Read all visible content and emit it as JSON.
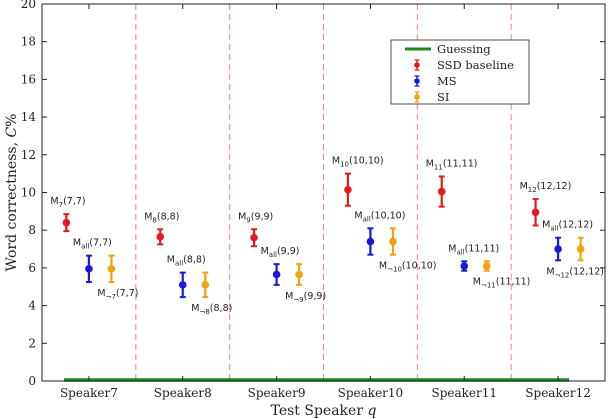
{
  "chart_data": {
    "type": "scatter",
    "ylabel_main": "Word correctness, ",
    "ylabel_var": "C",
    "ylabel_unit": "%",
    "xlabel_main": "Test Speaker ",
    "xlabel_var": "q",
    "categories": [
      "Speaker7",
      "Speaker8",
      "Speaker9",
      "Speaker10",
      "Speaker11",
      "Speaker12"
    ],
    "ylim": [
      0,
      20
    ],
    "yticks": [
      0,
      2,
      4,
      6,
      8,
      10,
      12,
      14,
      16,
      18,
      20
    ],
    "legend_position": "top-right",
    "guessing": {
      "name": "Guessing",
      "value": 0.0,
      "color": "#1a8a1a"
    },
    "series": [
      {
        "name": "SSD baseline",
        "color": "#e41a1c",
        "values": [
          8.4,
          7.65,
          7.6,
          10.15,
          10.05,
          8.95
        ],
        "err": [
          0.45,
          0.4,
          0.45,
          0.85,
          0.8,
          0.7
        ],
        "labels": [
          {
            "base": "M",
            "sub": "7",
            "args": "(7,7)"
          },
          {
            "base": "M",
            "sub": "8",
            "args": "(8,8)"
          },
          {
            "base": "M",
            "sub": "9",
            "args": "(9,9)"
          },
          {
            "base": "M",
            "sub": "10",
            "args": "(10,10)"
          },
          {
            "base": "M",
            "sub": "11",
            "args": "(11,11)"
          },
          {
            "base": "M",
            "sub": "12",
            "args": "(12,12)"
          }
        ]
      },
      {
        "name": "MS",
        "color": "#1a1ad6",
        "values": [
          5.95,
          5.1,
          5.65,
          7.4,
          6.1,
          7.0
        ],
        "err": [
          0.7,
          0.65,
          0.55,
          0.7,
          0.25,
          0.6
        ],
        "labels": [
          {
            "base": "M",
            "sub": "all",
            "args": "(7,7)"
          },
          {
            "base": "M",
            "sub": "all",
            "args": "(8,8)"
          },
          {
            "base": "M",
            "sub": "all",
            "args": "(9,9)"
          },
          {
            "base": "M",
            "sub": "all",
            "args": "(10,10)"
          },
          {
            "base": "M",
            "sub": "all",
            "args": "(11,11)"
          },
          {
            "base": "M",
            "sub": "all",
            "args": "(12,12)"
          }
        ]
      },
      {
        "name": "SI",
        "color": "#f5a011",
        "values": [
          5.95,
          5.1,
          5.65,
          7.4,
          6.1,
          7.0
        ],
        "err": [
          0.7,
          0.65,
          0.55,
          0.7,
          0.25,
          0.6
        ],
        "labels": [
          {
            "base": "M",
            "sub": "¬7",
            "args": "(7,7)"
          },
          {
            "base": "M",
            "sub": "¬8",
            "args": "(8,8)"
          },
          {
            "base": "M",
            "sub": "¬9",
            "args": "(9,9)"
          },
          {
            "base": "M",
            "sub": "¬10",
            "args": "(10,10)"
          },
          {
            "base": "M",
            "sub": "¬11",
            "args": "(11,11)"
          },
          {
            "base": "M",
            "sub": "¬12",
            "args": "(12,12)"
          }
        ]
      }
    ],
    "separator_color": "#f08080"
  }
}
